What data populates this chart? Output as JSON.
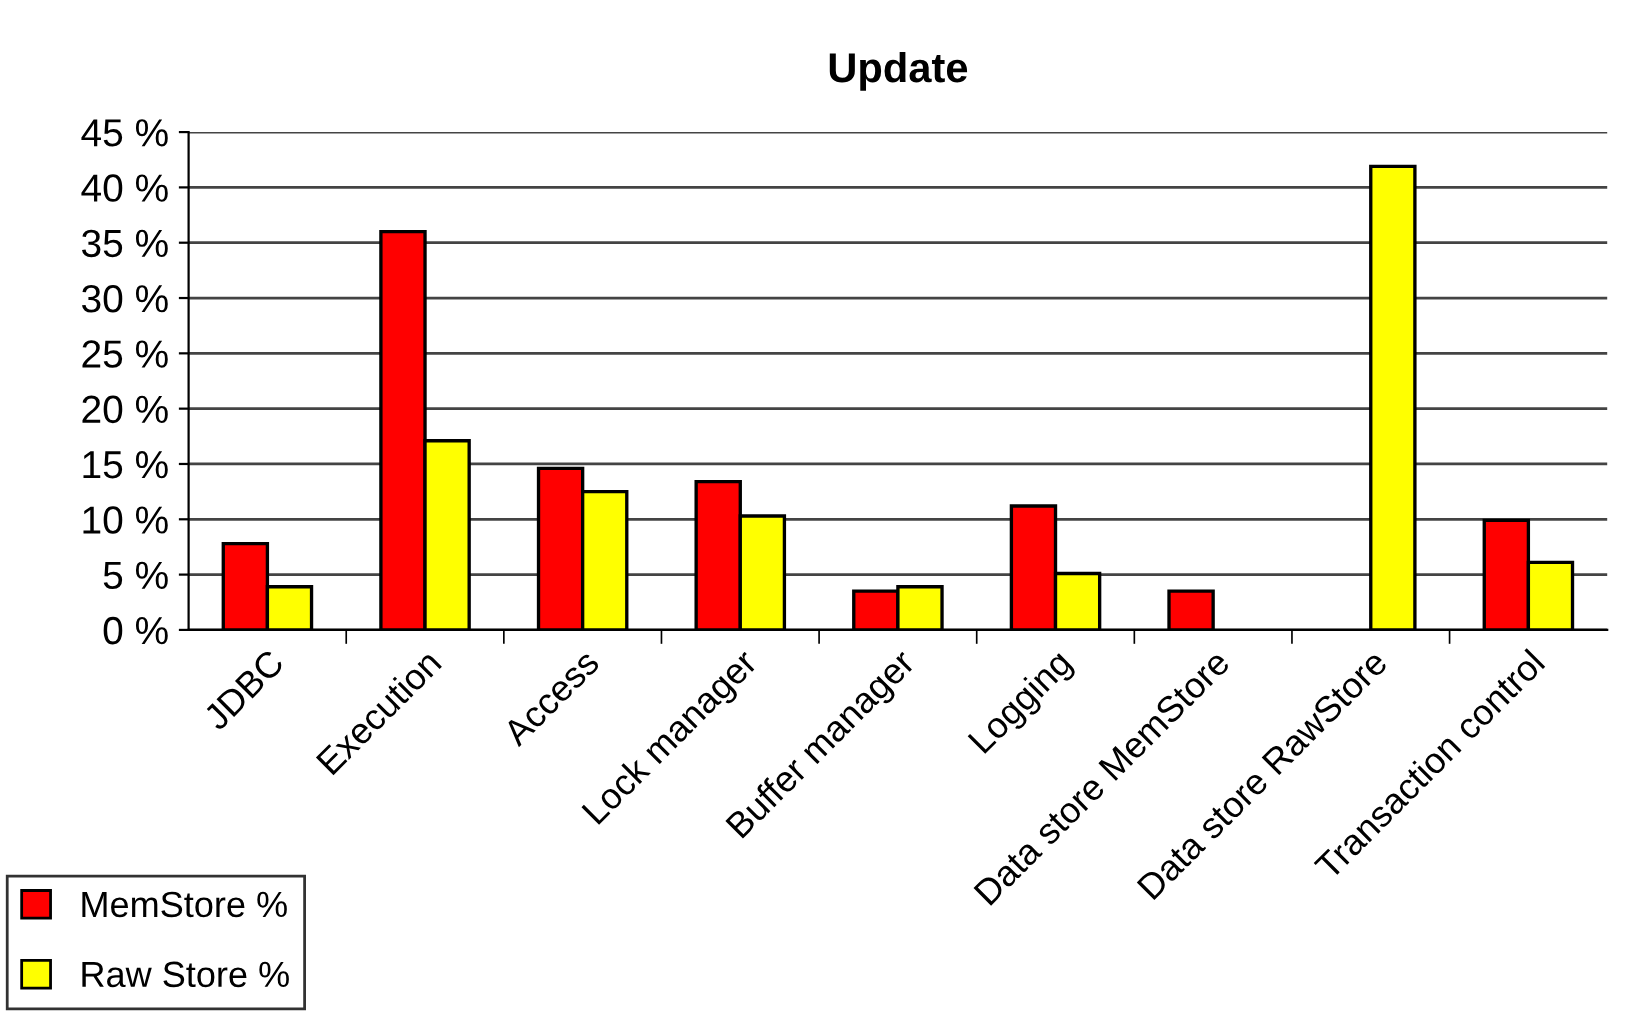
{
  "chart_data": {
    "type": "bar",
    "title": "Update",
    "categories": [
      "JDBC",
      "Execution",
      "Access",
      "Lock manager",
      "Buffer manager",
      "Logging",
      "Data store MemStore",
      "Data store RawStore",
      "Transaction control"
    ],
    "series": [
      {
        "name": "MemStore %",
        "color": "#ff0000",
        "values": [
          7.8,
          36.0,
          14.6,
          13.4,
          3.5,
          11.2,
          3.5,
          null,
          9.9
        ]
      },
      {
        "name": "Raw Store %",
        "color": "#ffff00",
        "values": [
          3.9,
          17.1,
          12.5,
          10.3,
          3.9,
          5.1,
          null,
          41.9,
          6.1
        ]
      }
    ],
    "ylim": [
      0,
      45
    ],
    "yticks": [
      {
        "value": 0,
        "label": "0 %"
      },
      {
        "value": 5,
        "label": "5 %"
      },
      {
        "value": 10,
        "label": "10 %"
      },
      {
        "value": 15,
        "label": "15 %"
      },
      {
        "value": 20,
        "label": "20 %"
      },
      {
        "value": 25,
        "label": "25 %"
      },
      {
        "value": 30,
        "label": "30 %"
      },
      {
        "value": 35,
        "label": "35 %"
      },
      {
        "value": 40,
        "label": "40 %"
      },
      {
        "value": 45,
        "label": "45 %"
      }
    ],
    "grid": "y",
    "legend": "bottom left"
  }
}
